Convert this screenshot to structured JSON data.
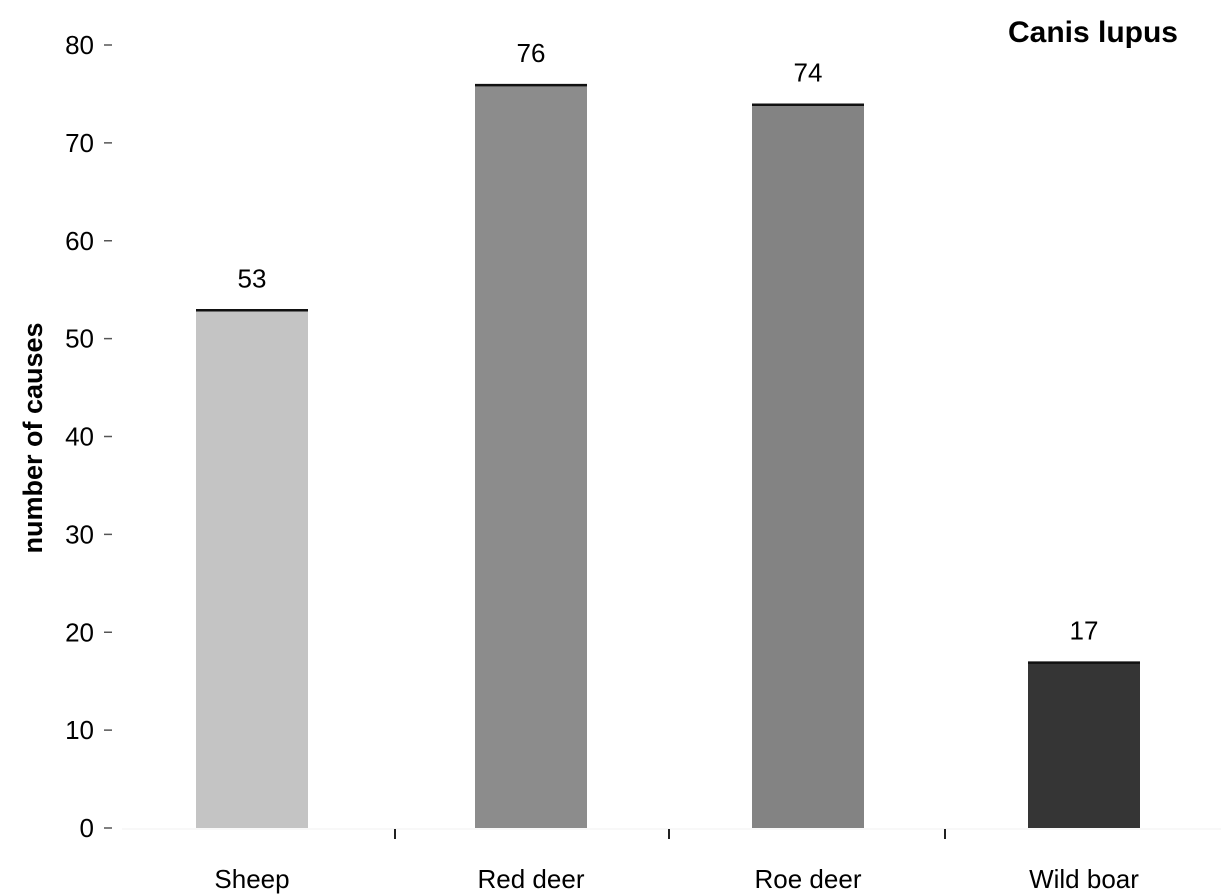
{
  "chart_data": {
    "type": "bar",
    "title": "Canis lupus",
    "xlabel": "",
    "ylabel": "number of causes",
    "categories": [
      "Sheep",
      "Red deer",
      "Roe deer",
      "Wild boar"
    ],
    "values": [
      53,
      76,
      74,
      17
    ],
    "value_labels": [
      "53",
      "76",
      "74",
      "17"
    ],
    "bar_colors": [
      "#c4c4c4",
      "#8c8c8c",
      "#838383",
      "#353535"
    ],
    "yticks": [
      0,
      10,
      20,
      30,
      40,
      50,
      60,
      70,
      80
    ],
    "ytick_labels": [
      "0",
      "10",
      "20",
      "30",
      "40",
      "50",
      "60",
      "70",
      "80"
    ],
    "ylim": [
      0,
      80
    ],
    "grid": false,
    "legend": "none",
    "title_position": "top-right"
  }
}
